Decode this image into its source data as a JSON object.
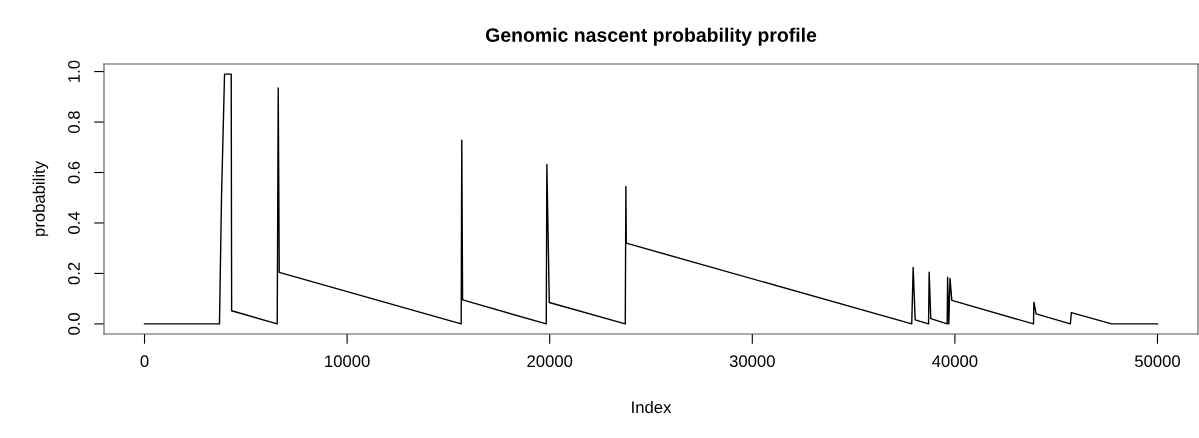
{
  "chart_data": {
    "type": "line",
    "title": "Genomic nascent probability profile",
    "xlabel": "Index",
    "ylabel": "probability",
    "xlim": [
      -2000,
      52000
    ],
    "xticks": [
      0,
      10000,
      20000,
      30000,
      40000,
      50000
    ],
    "ylim": [
      -0.04,
      1.03
    ],
    "yticks": [
      {
        "value": 0,
        "label": "0.0"
      },
      0.2,
      0.4,
      0.6,
      0.8,
      {
        "value": 1,
        "label": "1.0"
      }
    ],
    "grid": false,
    "marker": "none",
    "line_style": "solid",
    "series": [
      {
        "color": "#000000",
        "x": [
          0,
          3700,
          3800,
          3950,
          4280,
          4300,
          6550,
          6600,
          6650,
          15630,
          15660,
          15700,
          19830,
          19860,
          19980,
          23730,
          23760,
          23780,
          37870,
          37940,
          38040,
          38700,
          38730,
          38810,
          39620,
          39640,
          39700,
          39760,
          39850,
          43880,
          43900,
          44010,
          45700,
          45750,
          47740,
          50000
        ],
        "values": [
          0,
          0,
          0.5,
          0.99,
          0.99,
          0.052,
          0,
          0.935,
          0.204,
          0,
          0.728,
          0.095,
          0,
          0.632,
          0.085,
          0,
          0.545,
          0.32,
          0,
          0.224,
          0.016,
          0,
          0.205,
          0.021,
          0,
          0.185,
          0,
          0.18,
          0.093,
          0,
          0.086,
          0.04,
          0,
          0.045,
          0,
          0
        ]
      }
    ]
  }
}
